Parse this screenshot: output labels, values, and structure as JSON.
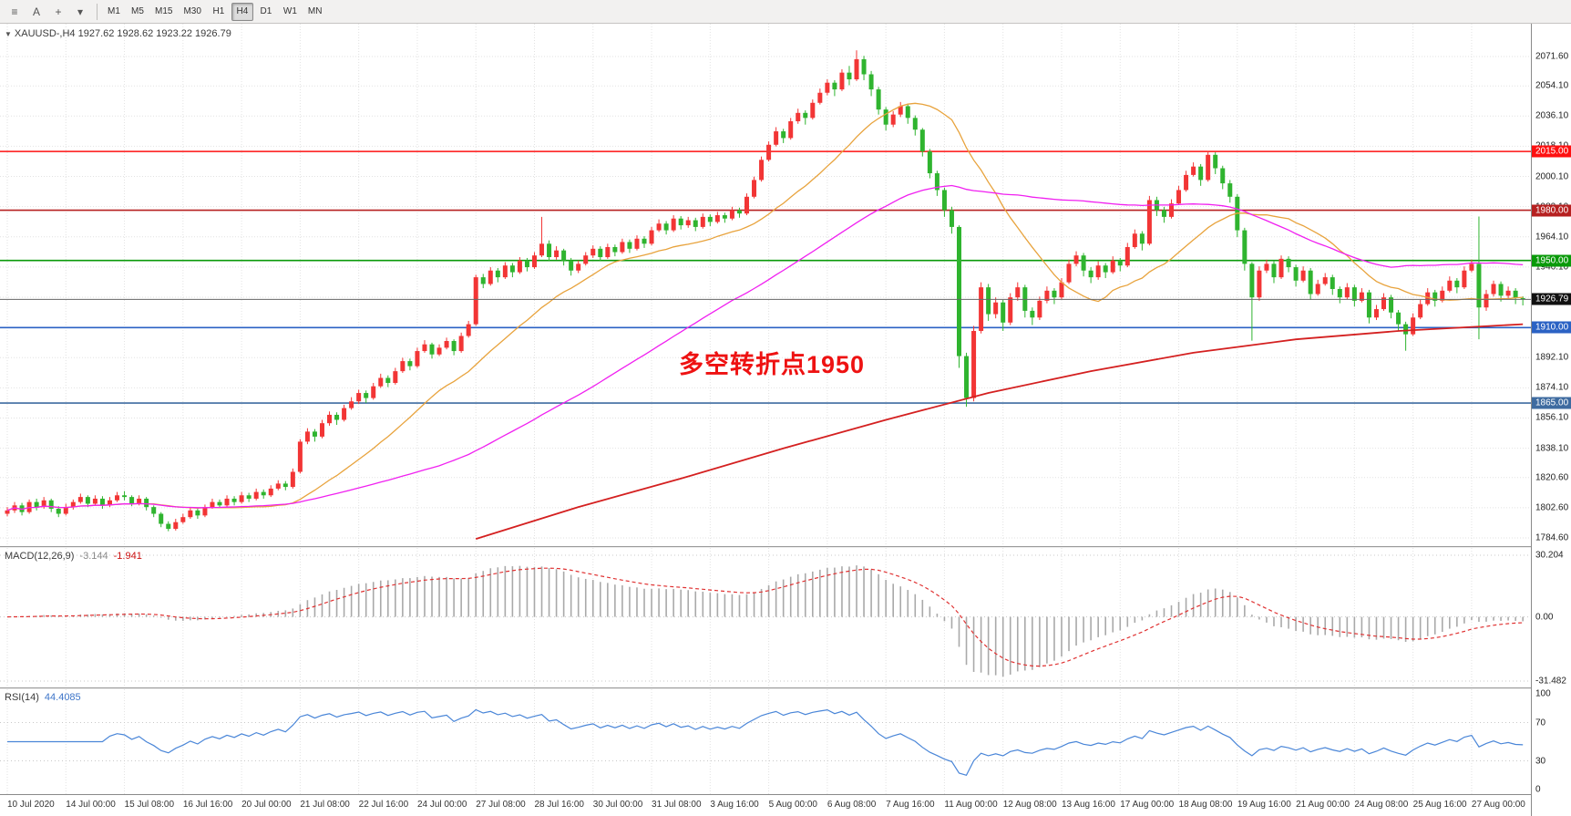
{
  "toolbar": {
    "icons": [
      {
        "name": "charts-grid-icon",
        "glyph": "≡"
      },
      {
        "name": "cursor-tool-icon",
        "glyph": "A"
      },
      {
        "name": "crosshair-tool-icon",
        "glyph": "+"
      },
      {
        "name": "indicators-dropdown-icon",
        "glyph": "▾"
      }
    ],
    "timeframes": [
      "M1",
      "M5",
      "M15",
      "M30",
      "H1",
      "H4",
      "D1",
      "W1",
      "MN"
    ],
    "active_timeframe": "H4"
  },
  "chart": {
    "marker": "▼",
    "title": "XAUUSD-,H4  1927.62 1928.62 1923.22 1926.79",
    "annotation": {
      "text": "多空转折点1950",
      "color": "#ee1212"
    }
  },
  "chart_data": {
    "type": "candlestick",
    "symbol": "XAUUSD-",
    "timeframe": "H4",
    "ylim": [
      1784.6,
      2071.6
    ],
    "bull_color": "#f23535",
    "bear_color": "#2fb42f",
    "bars_per_label": 8,
    "x_labels": [
      "10 Jul 2020",
      "14 Jul 00:00",
      "15 Jul 08:00",
      "16 Jul 16:00",
      "20 Jul 00:00",
      "21 Jul 08:00",
      "22 Jul 16:00",
      "24 Jul 00:00",
      "27 Jul 08:00",
      "28 Jul 16:00",
      "30 Jul 00:00",
      "31 Jul 08:00",
      "3 Aug 16:00",
      "5 Aug 00:00",
      "6 Aug 08:00",
      "7 Aug 16:00",
      "11 Aug 00:00",
      "12 Aug 08:00",
      "13 Aug 16:00",
      "17 Aug 00:00",
      "18 Aug 08:00",
      "19 Aug 16:00",
      "21 Aug 00:00",
      "24 Aug 08:00",
      "25 Aug 16:00",
      "27 Aug 00:00"
    ],
    "price_ticks": [
      2071.6,
      2054.1,
      2036.1,
      2018.1,
      2000.1,
      1982.1,
      1964.1,
      1946.1,
      1928.1,
      1910.1,
      1892.1,
      1874.1,
      1856.1,
      1838.1,
      1820.6,
      1802.6,
      1784.6
    ],
    "levels": [
      {
        "price": 2015.0,
        "label": "2015.00",
        "color": "#fe1010"
      },
      {
        "price": 1980.0,
        "label": "1980.00",
        "color": "#b62020"
      },
      {
        "price": 1950.0,
        "label": "1950.00",
        "color": "#0a9a0a"
      },
      {
        "price": 1910.0,
        "label": "1910.00",
        "color": "#2b62c4"
      },
      {
        "price": 1865.0,
        "label": "1865.00",
        "color": "#3e6ba0"
      }
    ],
    "current_price": 1926.79,
    "current_price_label": "1926.79",
    "ohlc_last": {
      "open": 1927.62,
      "high": 1928.62,
      "low": 1923.22,
      "close": 1926.79
    },
    "moving_averages": [
      {
        "name": "ma-fast-line",
        "period": 20,
        "color": "#e8a33d"
      },
      {
        "name": "ma-slow-line",
        "period": 60,
        "color": "#f020f0"
      },
      {
        "name": "ma-trend-line",
        "color": "#d42020",
        "points": [
          [
            64,
            1784
          ],
          [
            78,
            1803
          ],
          [
            92,
            1820
          ],
          [
            106,
            1838
          ],
          [
            120,
            1855
          ],
          [
            134,
            1871
          ],
          [
            148,
            1884
          ],
          [
            162,
            1895
          ],
          [
            176,
            1903
          ],
          [
            190,
            1908
          ],
          [
            207,
            1912
          ]
        ]
      }
    ],
    "macd": {
      "label": "MACD(12,26,9)",
      "value_main": "-3.144",
      "value_signal": "-1.941",
      "params": {
        "fast": 12,
        "slow": 26,
        "signal": 9
      },
      "max": 30.204,
      "min": -31.482,
      "axis": [
        {
          "v": 30.204,
          "label": "30.204"
        },
        {
          "v": 0,
          "label": "0.00"
        },
        {
          "v": -31.482,
          "label": "-31.482"
        }
      ]
    },
    "rsi": {
      "label": "RSI(14)",
      "value": "44.4085",
      "period": 14,
      "levels": [
        70,
        30
      ],
      "axis": [
        {
          "v": 100,
          "label": "100"
        },
        {
          "v": 70,
          "label": "70"
        },
        {
          "v": 30,
          "label": "30"
        },
        {
          "v": 0,
          "label": "0"
        }
      ]
    },
    "candles": [
      [
        1799,
        1803,
        1797.5,
        1801
      ],
      [
        1801,
        1806,
        1799.5,
        1804
      ],
      [
        1804,
        1805.5,
        1798,
        1800
      ],
      [
        1800,
        1807.5,
        1799,
        1806
      ],
      [
        1806,
        1808,
        1801,
        1803
      ],
      [
        1803,
        1809,
        1802,
        1807
      ],
      [
        1807,
        1808,
        1800,
        1802
      ],
      [
        1802,
        1803.5,
        1797,
        1799
      ],
      [
        1799,
        1805,
        1798,
        1803
      ],
      [
        1803,
        1807.5,
        1801.5,
        1806
      ],
      [
        1806,
        1811,
        1805,
        1809
      ],
      [
        1809,
        1810,
        1803,
        1805
      ],
      [
        1805,
        1810,
        1804,
        1808
      ],
      [
        1808,
        1809.5,
        1802,
        1804
      ],
      [
        1804,
        1809,
        1803,
        1807
      ],
      [
        1807,
        1812,
        1806,
        1810
      ],
      [
        1810,
        1812.5,
        1807,
        1809
      ],
      [
        1809,
        1810,
        1803.5,
        1805
      ],
      [
        1805,
        1810,
        1804,
        1808
      ],
      [
        1808,
        1809,
        1801,
        1803
      ],
      [
        1803,
        1804,
        1797,
        1799
      ],
      [
        1799,
        1800,
        1791,
        1793
      ],
      [
        1793,
        1794.5,
        1788.6,
        1790
      ],
      [
        1790,
        1796,
        1789,
        1794
      ],
      [
        1794,
        1799,
        1793,
        1797
      ],
      [
        1797,
        1802.5,
        1796,
        1801
      ],
      [
        1801,
        1802,
        1796,
        1798
      ],
      [
        1798,
        1804.5,
        1797,
        1803
      ],
      [
        1803,
        1808,
        1802,
        1806
      ],
      [
        1806,
        1807.5,
        1802.5,
        1804
      ],
      [
        1804,
        1810,
        1803,
        1808
      ],
      [
        1808,
        1809.5,
        1804,
        1806
      ],
      [
        1806,
        1812,
        1805,
        1810
      ],
      [
        1810,
        1811.5,
        1806,
        1808
      ],
      [
        1808,
        1814,
        1807,
        1812
      ],
      [
        1812,
        1813.5,
        1808,
        1810
      ],
      [
        1810,
        1816,
        1809,
        1814
      ],
      [
        1814,
        1819,
        1813,
        1817
      ],
      [
        1817,
        1818.5,
        1813,
        1815
      ],
      [
        1815,
        1826,
        1814,
        1824
      ],
      [
        1824,
        1843.5,
        1823,
        1842
      ],
      [
        1842,
        1850,
        1840.5,
        1848
      ],
      [
        1848,
        1849.5,
        1842,
        1845
      ],
      [
        1845,
        1855,
        1844,
        1853
      ],
      [
        1853,
        1860,
        1851.5,
        1858
      ],
      [
        1858,
        1859.5,
        1852,
        1855
      ],
      [
        1855,
        1864,
        1854,
        1862
      ],
      [
        1862,
        1868.5,
        1861,
        1866
      ],
      [
        1866,
        1873,
        1864.5,
        1871
      ],
      [
        1871,
        1872.5,
        1865,
        1868
      ],
      [
        1868,
        1877,
        1867,
        1875
      ],
      [
        1875,
        1882.5,
        1874,
        1880
      ],
      [
        1880,
        1881.5,
        1874.5,
        1877
      ],
      [
        1877,
        1886,
        1876,
        1884
      ],
      [
        1884,
        1892,
        1883,
        1890
      ],
      [
        1890,
        1891.5,
        1884.5,
        1887
      ],
      [
        1887,
        1898,
        1886,
        1896
      ],
      [
        1896,
        1902.5,
        1895,
        1900
      ],
      [
        1900,
        1901,
        1891.5,
        1894
      ],
      [
        1894,
        1900,
        1893,
        1898
      ],
      [
        1898,
        1904,
        1897,
        1902
      ],
      [
        1902,
        1903,
        1893.5,
        1896
      ],
      [
        1896,
        1907,
        1895,
        1905
      ],
      [
        1905,
        1914,
        1904,
        1912
      ],
      [
        1912,
        1941.5,
        1911,
        1940
      ],
      [
        1940,
        1942,
        1933.5,
        1936
      ],
      [
        1936,
        1946,
        1935,
        1944
      ],
      [
        1944,
        1945.5,
        1937,
        1940
      ],
      [
        1940,
        1949,
        1939,
        1947
      ],
      [
        1947,
        1948.5,
        1940,
        1943
      ],
      [
        1943,
        1952,
        1942,
        1950
      ],
      [
        1950,
        1951.5,
        1943.5,
        1946
      ],
      [
        1946,
        1955,
        1945,
        1953
      ],
      [
        1953,
        1976,
        1952,
        1960
      ],
      [
        1960,
        1962,
        1949.5,
        1952
      ],
      [
        1952,
        1958.5,
        1950.5,
        1956
      ],
      [
        1956,
        1957,
        1947,
        1950
      ],
      [
        1950,
        1951.5,
        1941,
        1944
      ],
      [
        1944,
        1950,
        1942.5,
        1948
      ],
      [
        1948,
        1955,
        1947,
        1953
      ],
      [
        1953,
        1959,
        1951.5,
        1957
      ],
      [
        1957,
        1958.5,
        1949.5,
        1952
      ],
      [
        1952,
        1960,
        1951,
        1958
      ],
      [
        1958,
        1959.5,
        1952.5,
        1955
      ],
      [
        1955,
        1963,
        1954,
        1961
      ],
      [
        1961,
        1962.5,
        1954.5,
        1957
      ],
      [
        1957,
        1965,
        1956,
        1963
      ],
      [
        1963,
        1964.5,
        1957.5,
        1960
      ],
      [
        1960,
        1970,
        1959,
        1968
      ],
      [
        1968,
        1974.5,
        1967,
        1972
      ],
      [
        1972,
        1973.5,
        1965.5,
        1968
      ],
      [
        1968,
        1977,
        1967,
        1975
      ],
      [
        1975,
        1976.5,
        1968.5,
        1971
      ],
      [
        1971,
        1976,
        1969.5,
        1974
      ],
      [
        1974,
        1975.5,
        1967.5,
        1970
      ],
      [
        1970,
        1978,
        1969,
        1976
      ],
      [
        1976,
        1977.5,
        1970.5,
        1973
      ],
      [
        1973,
        1979,
        1972,
        1977
      ],
      [
        1977,
        1978.5,
        1972.5,
        1975
      ],
      [
        1975,
        1982,
        1974,
        1980
      ],
      [
        1980,
        1981.5,
        1975.5,
        1978
      ],
      [
        1978,
        1990,
        1977,
        1988
      ],
      [
        1988,
        2000,
        1987,
        1998
      ],
      [
        1998,
        2012,
        1997,
        2010
      ],
      [
        2010,
        2021,
        2009,
        2019
      ],
      [
        2019,
        2029.5,
        2018,
        2027
      ],
      [
        2027,
        2028.5,
        2020,
        2023
      ],
      [
        2023,
        2035,
        2022,
        2033
      ],
      [
        2033,
        2040.5,
        2031.5,
        2038
      ],
      [
        2038,
        2039.5,
        2031,
        2035
      ],
      [
        2035,
        2046,
        2034,
        2044
      ],
      [
        2044,
        2052.5,
        2043,
        2050
      ],
      [
        2050,
        2058,
        2048.5,
        2056
      ],
      [
        2056,
        2057.5,
        2048,
        2052
      ],
      [
        2052,
        2064,
        2051,
        2062
      ],
      [
        2062,
        2066,
        2054.5,
        2058
      ],
      [
        2058,
        2075.3,
        2057,
        2070
      ],
      [
        2070,
        2072,
        2057.5,
        2061
      ],
      [
        2061,
        2063,
        2048,
        2052
      ],
      [
        2052,
        2053.5,
        2037,
        2040
      ],
      [
        2040,
        2041.5,
        2027.5,
        2031
      ],
      [
        2031,
        2039,
        2029.5,
        2037
      ],
      [
        2037,
        2044.5,
        2035.5,
        2042
      ],
      [
        2042,
        2043.5,
        2031.5,
        2035
      ],
      [
        2035,
        2036.5,
        2024.5,
        2028
      ],
      [
        2028,
        2029,
        2012,
        2015
      ],
      [
        2015,
        2016.5,
        1999,
        2002
      ],
      [
        2002,
        2003.5,
        1988.5,
        1992
      ],
      [
        1992,
        1993.5,
        1976,
        1980
      ],
      [
        1980,
        1982,
        1966,
        1970
      ],
      [
        1970,
        1971,
        1886,
        1893
      ],
      [
        1893,
        1895,
        1862.8,
        1868
      ],
      [
        1868,
        1911,
        1866,
        1908
      ],
      [
        1908,
        1937,
        1906.5,
        1934
      ],
      [
        1934,
        1936,
        1914,
        1918
      ],
      [
        1918,
        1928,
        1915.5,
        1925
      ],
      [
        1925,
        1926.5,
        1908,
        1913
      ],
      [
        1913,
        1930.5,
        1911.5,
        1928
      ],
      [
        1928,
        1937,
        1926,
        1934
      ],
      [
        1934,
        1935.5,
        1916,
        1920
      ],
      [
        1920,
        1922,
        1911.5,
        1916
      ],
      [
        1916,
        1928.5,
        1914.5,
        1926
      ],
      [
        1926,
        1934.5,
        1924.5,
        1932
      ],
      [
        1932,
        1933.5,
        1924,
        1928
      ],
      [
        1928,
        1939.5,
        1927,
        1937
      ],
      [
        1937,
        1950.5,
        1936,
        1948
      ],
      [
        1948,
        1955.5,
        1946.5,
        1953
      ],
      [
        1953,
        1954.5,
        1940.5,
        1944
      ],
      [
        1944,
        1946,
        1936.5,
        1940
      ],
      [
        1940,
        1949.5,
        1938.5,
        1947
      ],
      [
        1947,
        1948.5,
        1939.5,
        1943
      ],
      [
        1943,
        1952.5,
        1942,
        1950
      ],
      [
        1950,
        1951.5,
        1943.5,
        1947
      ],
      [
        1947,
        1960.5,
        1946,
        1958
      ],
      [
        1958,
        1968.5,
        1957,
        1966
      ],
      [
        1966,
        1967.5,
        1956,
        1960
      ],
      [
        1960,
        1988.5,
        1959,
        1986
      ],
      [
        1986,
        1988,
        1976.5,
        1980
      ],
      [
        1980,
        1982,
        1972.5,
        1976
      ],
      [
        1976,
        1986.5,
        1975,
        1984
      ],
      [
        1984,
        1994.5,
        1983,
        1992
      ],
      [
        1992,
        2003.5,
        1991,
        2001
      ],
      [
        2001,
        2008.5,
        2000,
        2006
      ],
      [
        2006,
        2007.5,
        1994.5,
        1998
      ],
      [
        1998,
        2015.3,
        1997,
        2013
      ],
      [
        2013,
        2014.5,
        2001.5,
        2005
      ],
      [
        2005,
        2006.5,
        1992.5,
        1996
      ],
      [
        1996,
        1998,
        1984.5,
        1988
      ],
      [
        1988,
        1989.5,
        1964,
        1968
      ],
      [
        1968,
        1969.5,
        1944,
        1948
      ],
      [
        1948,
        1949,
        1902.2,
        1928
      ],
      [
        1928,
        1946.5,
        1926,
        1944
      ],
      [
        1944,
        1950.5,
        1942.5,
        1948
      ],
      [
        1948,
        1949.5,
        1936.5,
        1940
      ],
      [
        1940,
        1953,
        1939,
        1951
      ],
      [
        1951,
        1952.5,
        1943,
        1946
      ],
      [
        1946,
        1947.5,
        1934.5,
        1938
      ],
      [
        1938,
        1946.5,
        1937,
        1944
      ],
      [
        1944,
        1945.5,
        1926.5,
        1930
      ],
      [
        1930,
        1938.5,
        1929,
        1936
      ],
      [
        1936,
        1942.5,
        1935,
        1940
      ],
      [
        1940,
        1941.5,
        1929.5,
        1933
      ],
      [
        1933,
        1934.5,
        1924.5,
        1928
      ],
      [
        1928,
        1936.5,
        1927,
        1934
      ],
      [
        1934,
        1935.5,
        1922.5,
        1926
      ],
      [
        1926,
        1933.5,
        1925,
        1931
      ],
      [
        1931,
        1932.5,
        1912.5,
        1916
      ],
      [
        1916,
        1923.5,
        1914.5,
        1921
      ],
      [
        1921,
        1930.5,
        1920,
        1928
      ],
      [
        1928,
        1929.5,
        1915.5,
        1919
      ],
      [
        1919,
        1920.5,
        1908,
        1912
      ],
      [
        1912,
        1913.5,
        1896.2,
        1906
      ],
      [
        1906,
        1918.5,
        1905,
        1916
      ],
      [
        1916,
        1926.5,
        1915,
        1924
      ],
      [
        1924,
        1933.5,
        1923,
        1931
      ],
      [
        1931,
        1932.5,
        1922.5,
        1926
      ],
      [
        1926,
        1934.5,
        1925,
        1932
      ],
      [
        1932,
        1940.5,
        1931,
        1938
      ],
      [
        1938,
        1939.5,
        1930.5,
        1934
      ],
      [
        1934,
        1946.5,
        1933,
        1944
      ],
      [
        1944,
        1950.5,
        1943,
        1948
      ],
      [
        1948,
        1976.2,
        1903,
        1922
      ],
      [
        1922,
        1932.5,
        1920,
        1930
      ],
      [
        1930,
        1938,
        1928.5,
        1936
      ],
      [
        1936,
        1937.5,
        1925.5,
        1929
      ],
      [
        1929,
        1934.5,
        1927.5,
        1932
      ],
      [
        1932,
        1933.5,
        1924,
        1927.6
      ],
      [
        1927.62,
        1928.62,
        1923.22,
        1926.79
      ]
    ]
  }
}
